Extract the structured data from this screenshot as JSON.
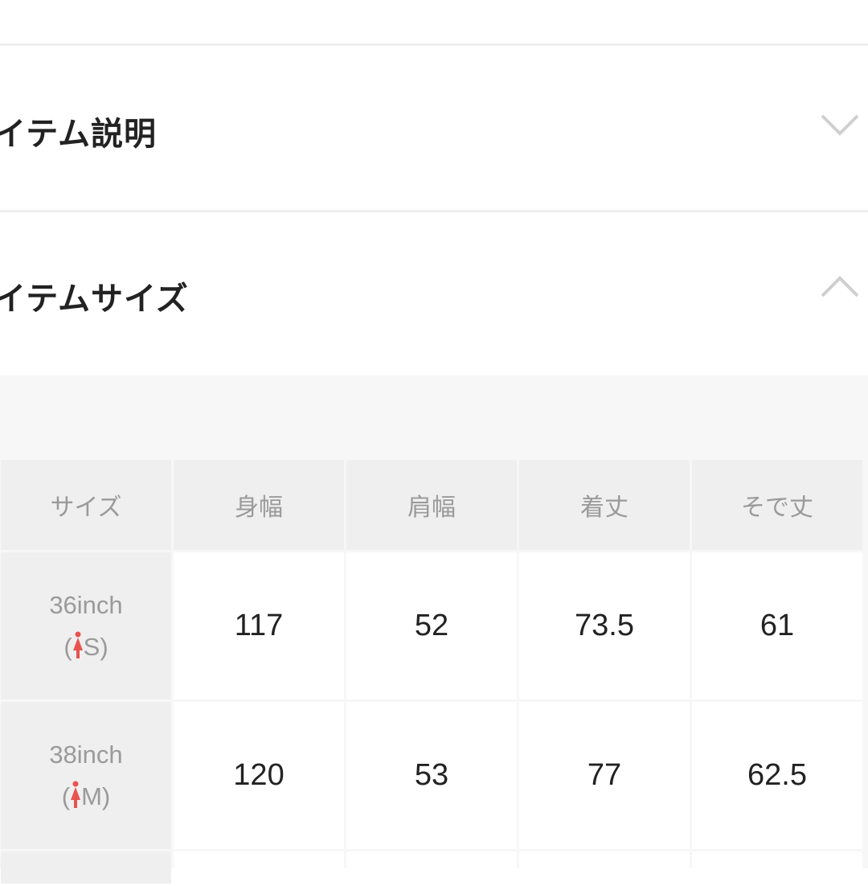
{
  "sections": [
    {
      "title": "イテム説明",
      "icon": "chevron-down-icon",
      "expanded": false
    },
    {
      "title": "イテムサイズ",
      "icon": "chevron-up-icon",
      "expanded": true
    }
  ],
  "size_table": {
    "headers": [
      "サイズ",
      "身幅",
      "肩幅",
      "着丈",
      "そで丈"
    ],
    "rows": [
      {
        "size": "36inch",
        "label": "S",
        "values": [
          "117",
          "52",
          "73.5",
          "61"
        ]
      },
      {
        "size": "38inch",
        "label": "M",
        "values": [
          "120",
          "53",
          "77",
          "62.5"
        ]
      }
    ],
    "icon": "woman-icon",
    "icon_color": "#e8534f"
  }
}
